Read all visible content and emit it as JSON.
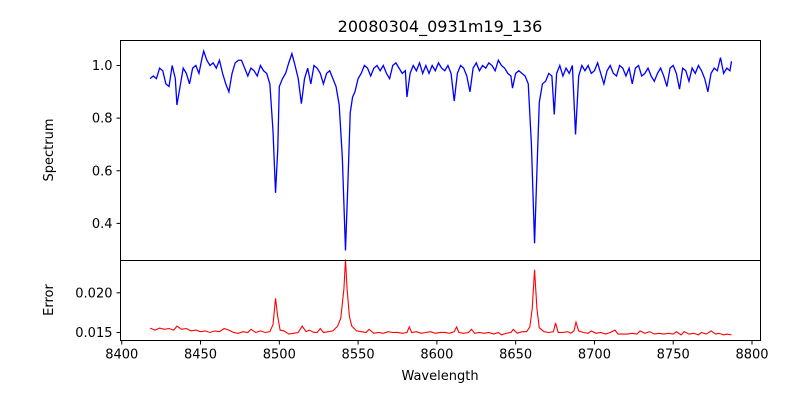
{
  "chart_data": [
    {
      "type": "line",
      "title": "20080304_0931m19_136",
      "xlabel": "",
      "ylabel": "Spectrum",
      "xlim": [
        8399.2,
        8805.4
      ],
      "ylim": [
        0.259,
        1.095
      ],
      "xticks": [
        8400,
        8450,
        8500,
        8550,
        8600,
        8650,
        8700,
        8750,
        8800
      ],
      "yticks": [
        0.4,
        0.6,
        0.8,
        1.0
      ],
      "ytick_labels": [
        "0.4",
        "0.6",
        "0.8",
        "1.0"
      ],
      "grid": false,
      "color": "#0000ff",
      "series": [
        {
          "name": "Spectrum",
          "x": [
            8418,
            8420,
            8422,
            8424,
            8426,
            8428,
            8430,
            8432,
            8434,
            8435,
            8437,
            8439,
            8441,
            8443,
            8445,
            8447,
            8449,
            8451,
            8452,
            8454,
            8456,
            8458,
            8460,
            8462,
            8464,
            8466,
            8468,
            8470,
            8472,
            8474,
            8476,
            8478,
            8480,
            8482,
            8484,
            8486,
            8488,
            8490,
            8492,
            8494,
            8496,
            8497.6,
            8499,
            8500,
            8502,
            8504,
            8506,
            8508,
            8510,
            8512,
            8514,
            8516,
            8518,
            8520,
            8522,
            8524,
            8526,
            8528,
            8530,
            8532,
            8534,
            8536,
            8538,
            8540,
            8542,
            8543.5,
            8545,
            8546.5,
            8548,
            8550,
            8552,
            8554,
            8556,
            8558,
            8560,
            8562,
            8564,
            8566,
            8568,
            8570,
            8572,
            8574,
            8576,
            8578,
            8580,
            8581,
            8583,
            8585,
            8587,
            8589,
            8591,
            8593,
            8595,
            8597,
            8599,
            8601,
            8603,
            8605,
            8607,
            8609,
            8611,
            8613,
            8615,
            8617,
            8619,
            8621,
            8623,
            8625,
            8627,
            8629,
            8631,
            8633,
            8635,
            8637,
            8639,
            8641,
            8643,
            8645,
            8647,
            8648,
            8650,
            8652,
            8654,
            8656,
            8658,
            8660,
            8662,
            8663.5,
            8665,
            8667,
            8669,
            8671,
            8673,
            8674.5,
            8676,
            8678,
            8680,
            8682,
            8684,
            8686,
            8688,
            8690,
            8692,
            8694,
            8696,
            8698,
            8700,
            8702,
            8704,
            8706,
            8708,
            8710,
            8712,
            8714,
            8716,
            8718,
            8720,
            8722,
            8724,
            8726,
            8728,
            8730,
            8732,
            8734,
            8736,
            8738,
            8740,
            8742,
            8744,
            8746,
            8748,
            8750,
            8752,
            8754,
            8756,
            8758,
            8760,
            8762,
            8764,
            8766,
            8768,
            8770,
            8772,
            8774,
            8776,
            8778,
            8780,
            8782,
            8784,
            8786,
            8787
          ],
          "y": [
            0.95,
            0.96,
            0.95,
            0.99,
            0.98,
            0.93,
            0.92,
            1.0,
            0.95,
            0.85,
            0.92,
            0.99,
            0.97,
            0.93,
            0.99,
            1.0,
            0.97,
            1.03,
            1.055,
            1.02,
            1.0,
            1.01,
            0.99,
            1.02,
            0.97,
            0.93,
            0.9,
            0.97,
            1.01,
            1.02,
            1.02,
            0.99,
            0.96,
            0.99,
            0.98,
            0.96,
            1.0,
            0.98,
            0.97,
            0.93,
            0.75,
            0.516,
            0.68,
            0.92,
            0.95,
            0.97,
            1.01,
            1.045,
            1.0,
            0.95,
            0.855,
            0.95,
            0.99,
            0.93,
            1.0,
            0.99,
            0.97,
            0.93,
            0.97,
            0.98,
            0.95,
            0.92,
            0.85,
            0.65,
            0.297,
            0.55,
            0.82,
            0.88,
            0.9,
            0.95,
            0.97,
            1.0,
            0.99,
            0.96,
            0.99,
            1.0,
            0.98,
            1.0,
            0.97,
            0.95,
            1.0,
            1.01,
            0.99,
            0.97,
            0.98,
            0.88,
            0.97,
            1.0,
            0.98,
            1.01,
            0.97,
            1.0,
            0.97,
            1.0,
            0.98,
            1.01,
            0.99,
            0.98,
            1.0,
            0.97,
            0.865,
            0.97,
            1.0,
            0.99,
            0.96,
            0.9,
            0.99,
            1.01,
            0.98,
            1.0,
            0.99,
            1.01,
            1.0,
            0.98,
            1.02,
            1.0,
            0.99,
            0.97,
            0.96,
            0.914,
            0.97,
            0.98,
            0.97,
            0.96,
            0.93,
            0.7,
            0.324,
            0.6,
            0.86,
            0.93,
            0.94,
            0.97,
            0.96,
            0.814,
            0.97,
            1.0,
            0.96,
            0.99,
            0.97,
            1.0,
            0.738,
            0.96,
            1.0,
            0.98,
            1.0,
            0.97,
            0.98,
            1.01,
            0.97,
            0.93,
            0.98,
            1.0,
            0.97,
            0.96,
            1.0,
            0.99,
            0.96,
            0.99,
            0.93,
            0.99,
            1.0,
            0.96,
            0.97,
            0.99,
            0.96,
            0.94,
            0.97,
            0.99,
            0.96,
            0.92,
            0.99,
            1.0,
            0.97,
            0.91,
            0.99,
            0.98,
            0.94,
            0.99,
            0.97,
            1.0,
            0.98,
            0.95,
            0.9,
            0.97,
            0.99,
            0.98,
            1.03,
            0.97,
            0.99,
            0.98,
            1.016
          ]
        }
      ]
    },
    {
      "type": "line",
      "title": "",
      "xlabel": "Wavelength",
      "ylabel": "Error",
      "xlim": [
        8399.2,
        8805.4
      ],
      "ylim": [
        0.01399,
        0.02407
      ],
      "xticks": [
        8400,
        8450,
        8500,
        8550,
        8600,
        8650,
        8700,
        8750,
        8800
      ],
      "xtick_labels": [
        "8400",
        "8450",
        "8500",
        "8550",
        "8600",
        "8650",
        "8700",
        "8750",
        "8800"
      ],
      "yticks": [
        0.015,
        0.02
      ],
      "ytick_labels": [
        "0.015",
        "0.020"
      ],
      "grid": false,
      "color": "#ff0000",
      "series": [
        {
          "name": "Error",
          "x": [
            8418,
            8421,
            8424,
            8427,
            8430,
            8433,
            8435,
            8438,
            8441,
            8444,
            8447,
            8450,
            8453,
            8456,
            8459,
            8462,
            8465,
            8468,
            8471,
            8474,
            8477,
            8480,
            8482,
            8485,
            8488,
            8491,
            8494,
            8496,
            8497.6,
            8499,
            8500.5,
            8503,
            8506,
            8509,
            8512,
            8514.5,
            8517,
            8519,
            8522,
            8524,
            8526,
            8528,
            8531,
            8534,
            8537,
            8539,
            8541,
            8542,
            8543,
            8544.5,
            8546,
            8549,
            8552,
            8555,
            8557,
            8560,
            8563,
            8566,
            8569,
            8572,
            8575,
            8578,
            8581,
            8582.5,
            8584,
            8587,
            8590,
            8593,
            8596,
            8599,
            8602,
            8605,
            8608,
            8611,
            8612.5,
            8614,
            8617,
            8620,
            8622,
            8624,
            8627,
            8630,
            8633,
            8636,
            8639,
            8641,
            8644,
            8647,
            8648.5,
            8651,
            8654,
            8657,
            8659,
            8660.5,
            8662,
            8663.5,
            8665,
            8668,
            8671,
            8674,
            8675.3,
            8677,
            8680,
            8683,
            8685,
            8687,
            8688.3,
            8690,
            8693,
            8696,
            8698,
            8701,
            8704,
            8707,
            8710,
            8713,
            8715,
            8718,
            8721,
            8724,
            8727,
            8729,
            8732,
            8735,
            8738,
            8741,
            8744,
            8747,
            8750,
            8752,
            8755,
            8757,
            8760,
            8763,
            8766,
            8768,
            8771,
            8774,
            8777,
            8779,
            8782,
            8784,
            8787
          ],
          "y": [
            0.01555,
            0.0153,
            0.01555,
            0.0154,
            0.0155,
            0.0153,
            0.0158,
            0.0154,
            0.0155,
            0.0152,
            0.0153,
            0.0151,
            0.0152,
            0.015,
            0.0152,
            0.0151,
            0.0155,
            0.0153,
            0.015,
            0.0149,
            0.0151,
            0.015,
            0.0154,
            0.015,
            0.0152,
            0.015,
            0.0151,
            0.016,
            0.0193,
            0.017,
            0.0153,
            0.0152,
            0.0148,
            0.0149,
            0.015,
            0.0158,
            0.0151,
            0.0153,
            0.015,
            0.015,
            0.0155,
            0.015,
            0.0151,
            0.0152,
            0.0158,
            0.0168,
            0.0205,
            0.0242,
            0.0205,
            0.017,
            0.0158,
            0.0152,
            0.0151,
            0.015,
            0.0154,
            0.0149,
            0.015,
            0.0149,
            0.0151,
            0.015,
            0.015,
            0.0149,
            0.015,
            0.0157,
            0.015,
            0.0151,
            0.0149,
            0.015,
            0.0151,
            0.0149,
            0.015,
            0.015,
            0.0149,
            0.0151,
            0.0157,
            0.015,
            0.0149,
            0.015,
            0.0154,
            0.0149,
            0.015,
            0.0149,
            0.015,
            0.0148,
            0.015,
            0.0147,
            0.0149,
            0.015,
            0.0154,
            0.0149,
            0.0151,
            0.0151,
            0.0157,
            0.018,
            0.0229,
            0.018,
            0.0156,
            0.0151,
            0.015,
            0.0151,
            0.0162,
            0.015,
            0.015,
            0.0151,
            0.0149,
            0.0152,
            0.0163,
            0.0152,
            0.015,
            0.0149,
            0.0152,
            0.0149,
            0.015,
            0.0148,
            0.015,
            0.0153,
            0.0148,
            0.0148,
            0.0148,
            0.0149,
            0.0148,
            0.0152,
            0.0149,
            0.0151,
            0.0148,
            0.0149,
            0.0148,
            0.0149,
            0.0148,
            0.0151,
            0.0147,
            0.0151,
            0.0148,
            0.0149,
            0.0147,
            0.015,
            0.0148,
            0.0152,
            0.0148,
            0.0149,
            0.0147,
            0.0148,
            0.0147
          ]
        }
      ]
    }
  ]
}
